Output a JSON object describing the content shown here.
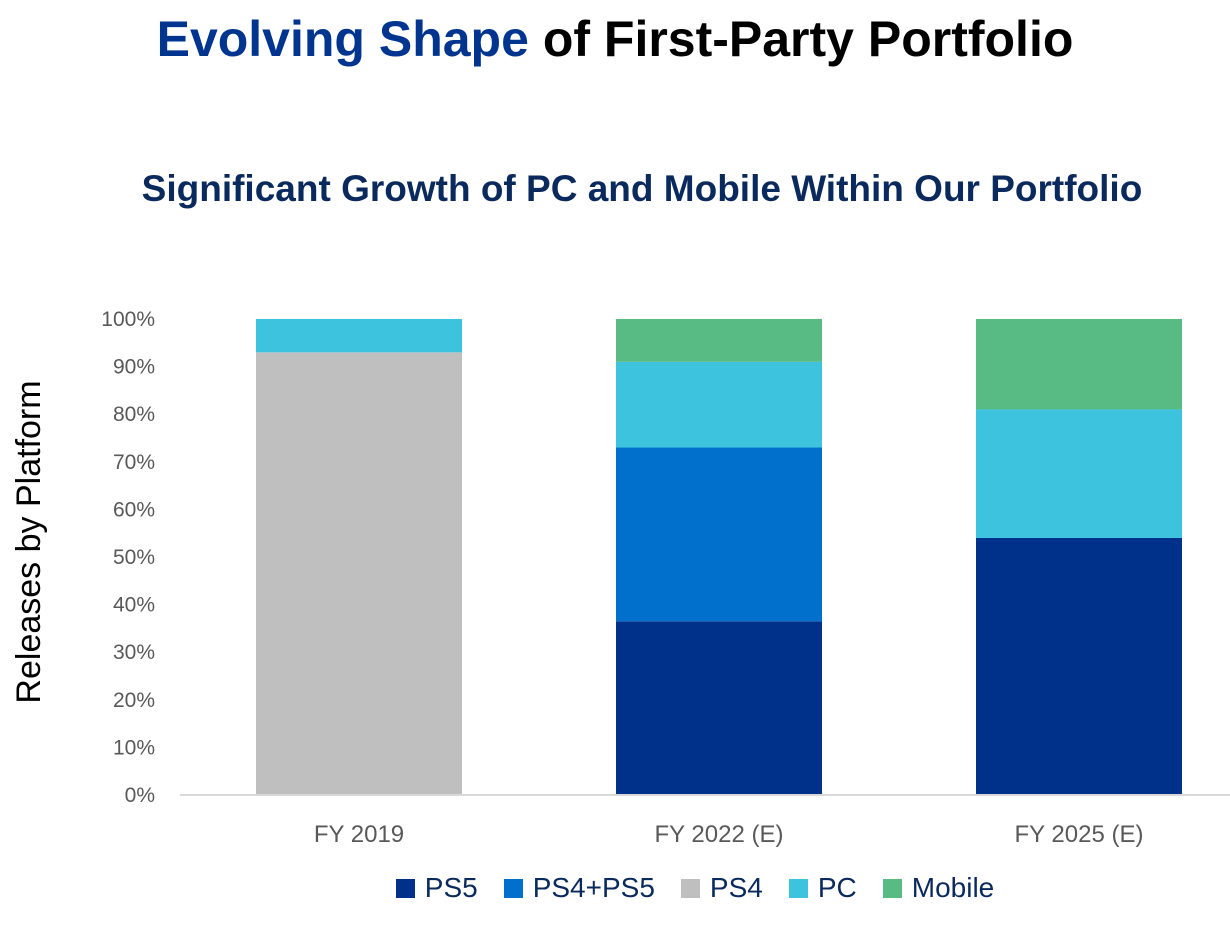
{
  "title": {
    "accent": "Evolving Shape",
    "rest": " of First-Party Portfolio"
  },
  "chart_data": {
    "type": "bar",
    "stacked": true,
    "title": "Significant Growth of PC and Mobile Within Our Portfolio",
    "xlabel": "",
    "ylabel": "Releases by Platform",
    "ylim": [
      0,
      100
    ],
    "yticks": [
      "0%",
      "10%",
      "20%",
      "30%",
      "40%",
      "50%",
      "60%",
      "70%",
      "80%",
      "90%",
      "100%"
    ],
    "categories": [
      "FY 2019",
      "FY 2022 (E)",
      "FY 2025 (E)"
    ],
    "legend_position": "bottom",
    "grid": false,
    "series": [
      {
        "name": "PS5",
        "color": "#00318a",
        "values": [
          0,
          36.5,
          54
        ]
      },
      {
        "name": "PS4+PS5",
        "color": "#0070cc",
        "values": [
          0,
          36.5,
          0
        ]
      },
      {
        "name": "PS4",
        "color": "#bfbfbf",
        "values": [
          93,
          0,
          0
        ]
      },
      {
        "name": "PC",
        "color": "#3ec3df",
        "values": [
          7,
          18,
          27
        ]
      },
      {
        "name": "Mobile",
        "color": "#57bb83",
        "values": [
          0,
          9,
          19
        ]
      }
    ]
  }
}
